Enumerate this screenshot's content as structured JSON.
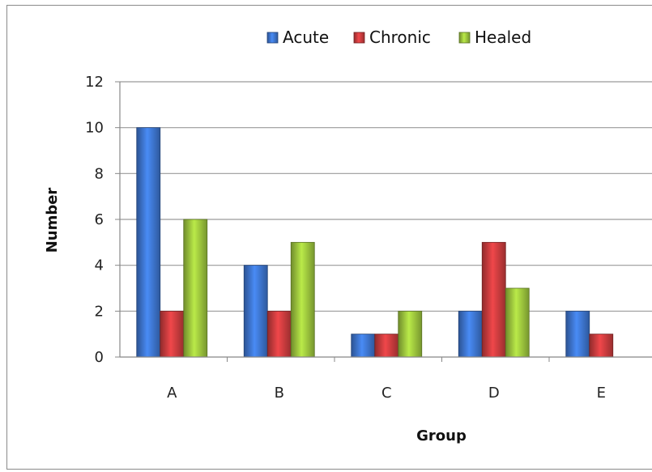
{
  "chart_data": {
    "type": "bar",
    "title": "",
    "xlabel": "Group",
    "ylabel": "Number",
    "categories": [
      "A",
      "B",
      "C",
      "D",
      "E"
    ],
    "ylim": [
      0,
      12
    ],
    "yticks": [
      0,
      2,
      4,
      6,
      8,
      10,
      12
    ],
    "grid": true,
    "legend_position": "top",
    "series": [
      {
        "name": "Acute",
        "color": "#3a6fc4",
        "values": [
          10,
          4,
          1,
          2,
          2
        ]
      },
      {
        "name": "Chronic",
        "color": "#c0393b",
        "values": [
          2,
          2,
          1,
          5,
          1
        ]
      },
      {
        "name": "Healed",
        "color": "#95bb3a",
        "values": [
          6,
          5,
          2,
          3,
          0
        ]
      }
    ]
  }
}
